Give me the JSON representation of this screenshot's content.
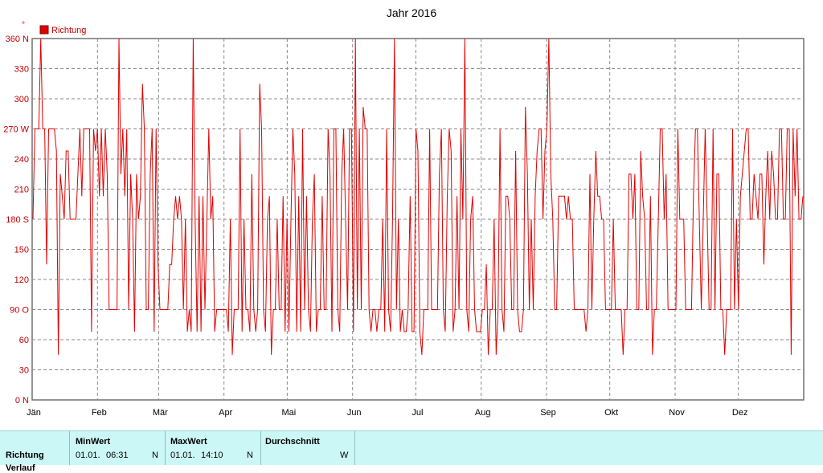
{
  "chart_data": {
    "type": "line",
    "title": "Jahr 2016",
    "unit_label": "°",
    "legend": [
      "Richtung"
    ],
    "legend_position": "top-left",
    "grid": true,
    "ylim": [
      0,
      360
    ],
    "y_ticks": [
      {
        "value": 0,
        "label": "0  N"
      },
      {
        "value": 30,
        "label": "30"
      },
      {
        "value": 60,
        "label": "60"
      },
      {
        "value": 90,
        "label": "90  O"
      },
      {
        "value": 120,
        "label": "120"
      },
      {
        "value": 150,
        "label": "150"
      },
      {
        "value": 180,
        "label": "180 S"
      },
      {
        "value": 210,
        "label": "210"
      },
      {
        "value": 240,
        "label": "240"
      },
      {
        "value": 270,
        "label": "270 W"
      },
      {
        "value": 300,
        "label": "300"
      },
      {
        "value": 330,
        "label": "330"
      },
      {
        "value": 360,
        "label": "360 N"
      }
    ],
    "x_ticks": [
      "Jän",
      "Feb",
      "Mär",
      "Apr",
      "Mai",
      "Jun",
      "Jul",
      "Aug",
      "Sep",
      "Okt",
      "Nov",
      "Dez"
    ],
    "series": [
      {
        "name": "Richtung",
        "color": "#e00000",
        "values": [
          180,
          270,
          270,
          270,
          360,
          270,
          270,
          135,
          270,
          270,
          270,
          270,
          248,
          45,
          225,
          203,
          180,
          248,
          248,
          180,
          180,
          180,
          180,
          225,
          270,
          203,
          270,
          270,
          270,
          270,
          68,
          270,
          248,
          270,
          203,
          270,
          203,
          270,
          225,
          90,
          90,
          90,
          90,
          90,
          360,
          225,
          270,
          203,
          270,
          90,
          225,
          180,
          68,
          225,
          180,
          203,
          315,
          270,
          90,
          90,
          225,
          270,
          68,
          270,
          135,
          90,
          90,
          90,
          90,
          90,
          135,
          135,
          180,
          203,
          180,
          203,
          180,
          90,
          180,
          68,
          90,
          68,
          360,
          180,
          68,
          203,
          68,
          203,
          90,
          180,
          270,
          180,
          203,
          68,
          90,
          90,
          90,
          90,
          90,
          90,
          68,
          180,
          45,
          90,
          90,
          90,
          270,
          68,
          180,
          90,
          90,
          68,
          225,
          90,
          68,
          90,
          315,
          270,
          90,
          68,
          180,
          203,
          45,
          90,
          90,
          180,
          90,
          90,
          203,
          68,
          180,
          68,
          180,
          270,
          225,
          68,
          203,
          68,
          270,
          90,
          203,
          90,
          68,
          180,
          225,
          68,
          90,
          90,
          203,
          90,
          90,
          270,
          225,
          68,
          270,
          270,
          90,
          68,
          225,
          270,
          180,
          90,
          270,
          270,
          68,
          360,
          90,
          270,
          90,
          292,
          270,
          270,
          90,
          68,
          90,
          90,
          68,
          90,
          90,
          180,
          68,
          270,
          90,
          68,
          180,
          360,
          90,
          180,
          68,
          90,
          68,
          68,
          90,
          203,
          68,
          68,
          270,
          248,
          68,
          45,
          90,
          90,
          90,
          270,
          90,
          90,
          90,
          90,
          225,
          270,
          90,
          68,
          203,
          270,
          248,
          68,
          90,
          203,
          90,
          270,
          180,
          360,
          90,
          68,
          180,
          203,
          90,
          68,
          68,
          68,
          90,
          90,
          135,
          45,
          90,
          90,
          180,
          45,
          90,
          270,
          90,
          68,
          203,
          203,
          180,
          90,
          90,
          248,
          90,
          68,
          68,
          90,
          292,
          225,
          90,
          180,
          90,
          203,
          248,
          270,
          270,
          180,
          248,
          270,
          360,
          225,
          180,
          90,
          90,
          203,
          203,
          203,
          203,
          180,
          203,
          180,
          180,
          90,
          90,
          90,
          90,
          90,
          90,
          68,
          90,
          225,
          90,
          180,
          248,
          203,
          203,
          180,
          180,
          90,
          90,
          90,
          90,
          180,
          90,
          90,
          90,
          90,
          45,
          90,
          90,
          225,
          225,
          180,
          225,
          90,
          90,
          248,
          203,
          180,
          90,
          90,
          203,
          45,
          90,
          90,
          180,
          270,
          270,
          180,
          225,
          90,
          90,
          90,
          90,
          90,
          270,
          180,
          180,
          180,
          90,
          90,
          90,
          90,
          203,
          270,
          270,
          180,
          90,
          180,
          270,
          180,
          90,
          90,
          270,
          90,
          225,
          225,
          90,
          90,
          45,
          90,
          90,
          90,
          270,
          90,
          180,
          90,
          203,
          225,
          248,
          270,
          270,
          180,
          180,
          225,
          203,
          180,
          225,
          225,
          135,
          203,
          248,
          180,
          248,
          225,
          180,
          180,
          270,
          270,
          180,
          180,
          270,
          270,
          45,
          270,
          203,
          270,
          180,
          180,
          203
        ]
      }
    ]
  },
  "stats": {
    "row_label": "Richtung",
    "row_label_2": "Verlauf",
    "cols": [
      {
        "header": "MinWert",
        "date": "01.01.",
        "time": "06:31",
        "value": "N"
      },
      {
        "header": "MaxWert",
        "date": "01.01.",
        "time": "14:10",
        "value": "N"
      },
      {
        "header": "Durchschnitt",
        "date": "",
        "time": "",
        "value": "W"
      }
    ]
  }
}
